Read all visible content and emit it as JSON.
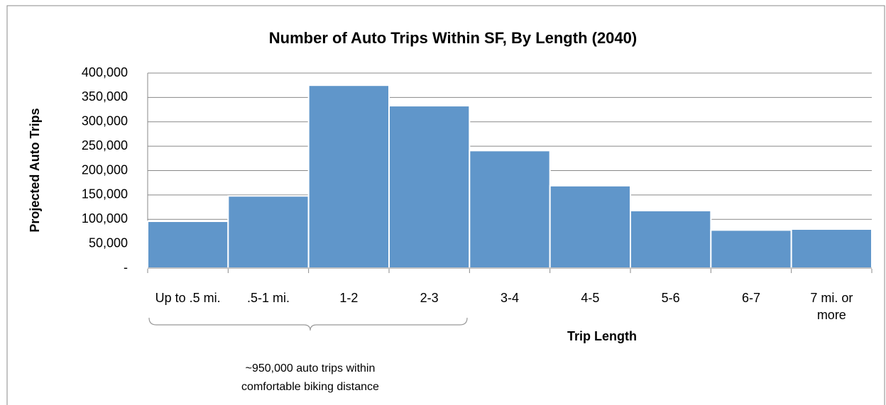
{
  "chart_data": {
    "type": "bar",
    "title": "Number of Auto Trips Within SF, By Length (2040)",
    "y_axis_label": "Projected Auto Trips",
    "x_axis_label": "Trip Length",
    "categories": [
      "Up to .5 mi.",
      ".5-1 mi.",
      "1-2",
      "2-3",
      "3-4",
      "4-5",
      "5-6",
      "6-7",
      "7 mi. or more"
    ],
    "values": [
      96000,
      148000,
      375000,
      333000,
      241000,
      169000,
      118000,
      78000,
      80000
    ],
    "color": "#6096ca",
    "ylim": [
      0,
      400000
    ],
    "yticks": [
      {
        "value": 0,
        "label": "-"
      },
      {
        "value": 50000,
        "label": "50,000"
      },
      {
        "value": 100000,
        "label": "100,000"
      },
      {
        "value": 150000,
        "label": "150,000"
      },
      {
        "value": 200000,
        "label": "200,000"
      },
      {
        "value": 250000,
        "label": "250,000"
      },
      {
        "value": 300000,
        "label": "300,000"
      },
      {
        "value": 350000,
        "label": "350,000"
      },
      {
        "value": 400000,
        "label": "400,000"
      }
    ],
    "grid": true,
    "annotation": [
      "~950,000 auto trips within",
      "comfortable biking distance"
    ]
  }
}
